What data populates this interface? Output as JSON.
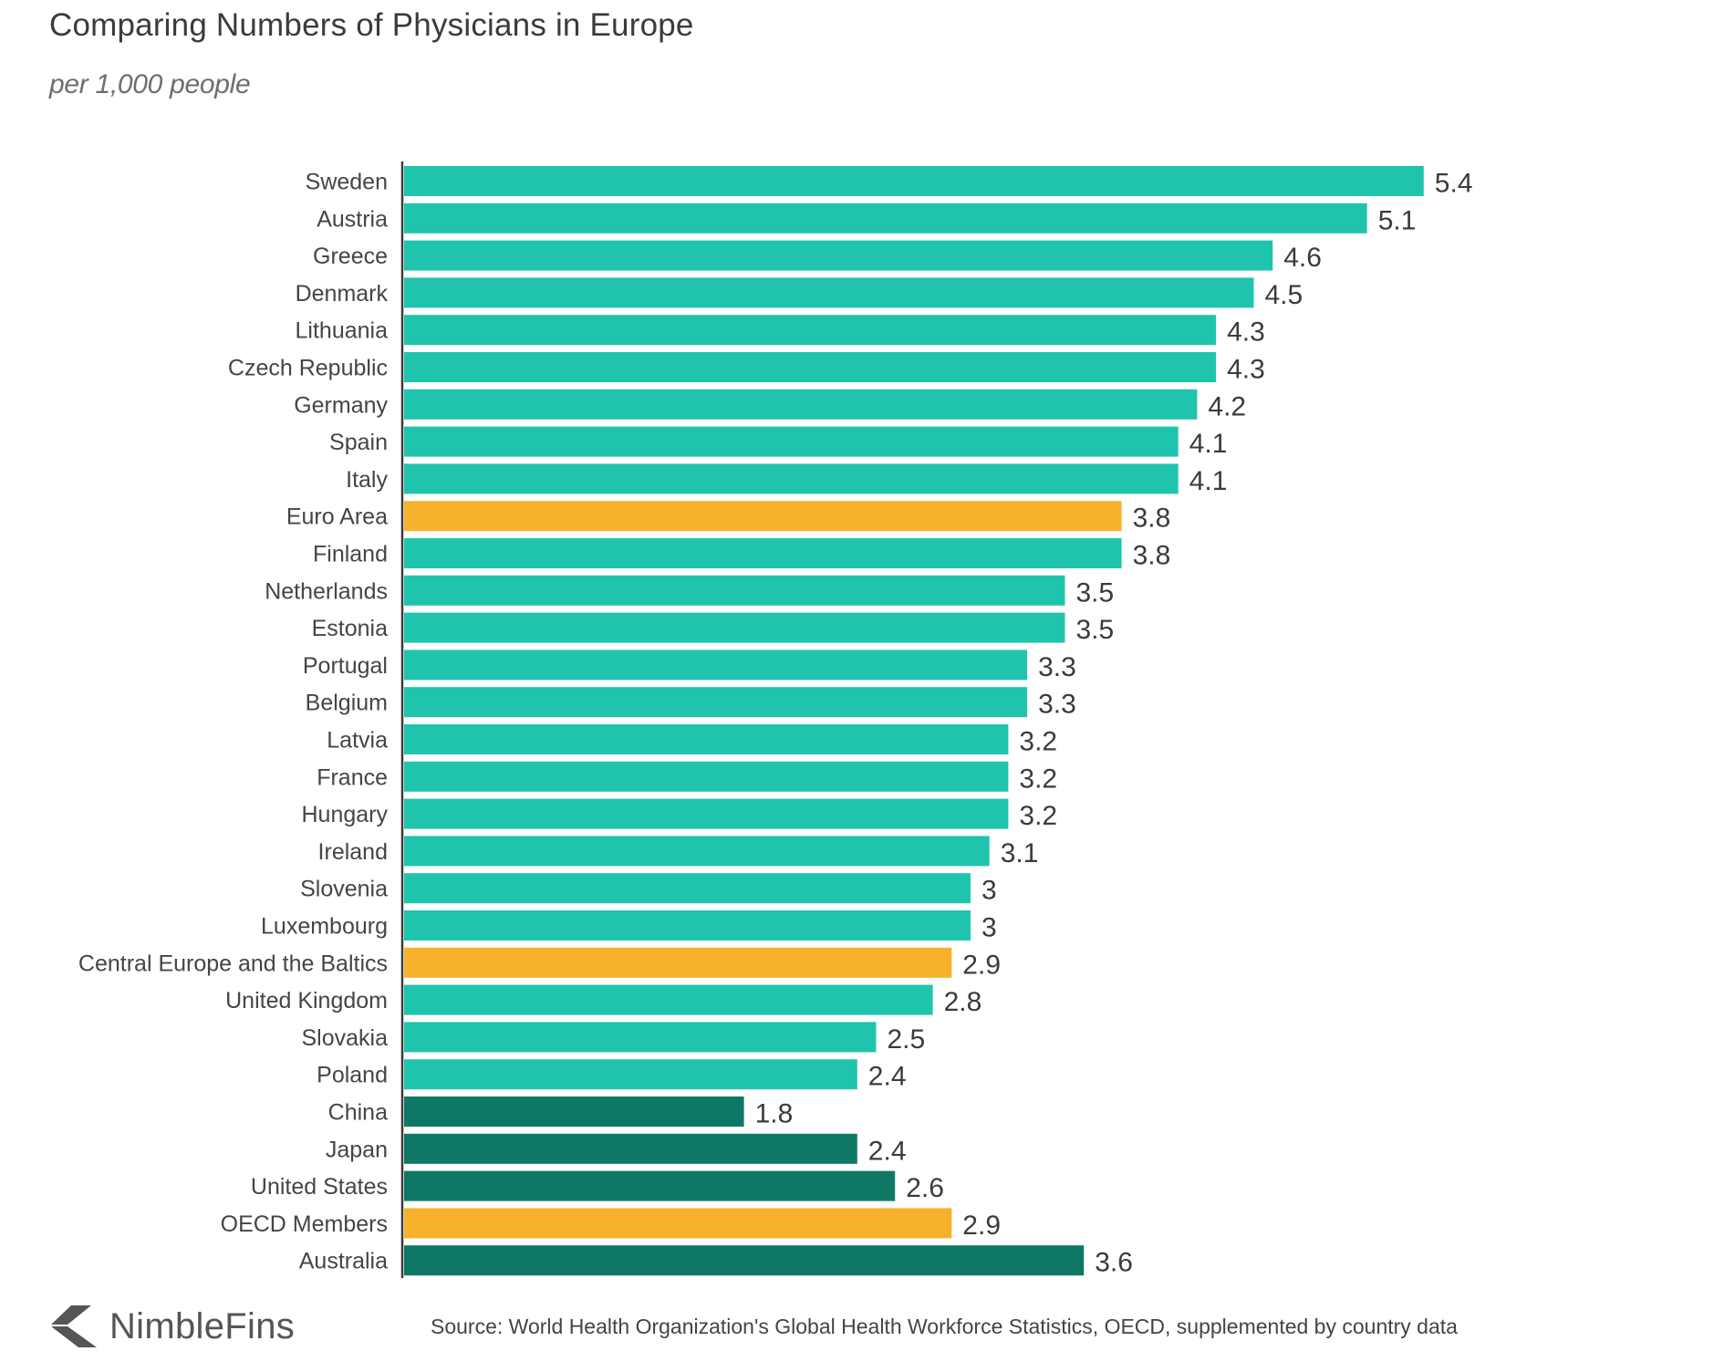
{
  "chart_data": {
    "type": "bar",
    "orientation": "horizontal",
    "title": "Comparing Numbers of Physicians in Europe",
    "subtitle": "per 1,000 people",
    "xlabel": "",
    "ylabel": "",
    "xlim": [
      0,
      5.4
    ],
    "grid": false,
    "legend": "none",
    "categories": [
      "Sweden",
      "Austria",
      "Greece",
      "Denmark",
      "Lithuania",
      "Czech Republic",
      "Germany",
      "Spain",
      "Italy",
      "Euro Area",
      "Finland",
      "Netherlands",
      "Estonia",
      "Portugal",
      "Belgium",
      "Latvia",
      "France",
      "Hungary",
      "Ireland",
      "Slovenia",
      "Luxembourg",
      "Central Europe and the Baltics",
      "United Kingdom",
      "Slovakia",
      "Poland",
      "China",
      "Japan",
      "United States",
      "OECD Members",
      "Australia"
    ],
    "values": [
      5.4,
      5.1,
      4.6,
      4.5,
      4.3,
      4.3,
      4.2,
      4.1,
      4.1,
      3.8,
      3.8,
      3.5,
      3.5,
      3.3,
      3.3,
      3.2,
      3.2,
      3.2,
      3.1,
      3,
      3,
      2.9,
      2.8,
      2.5,
      2.4,
      1.8,
      2.4,
      2.6,
      2.9,
      3.6
    ],
    "value_labels": [
      "5.4",
      "5.1",
      "4.6",
      "4.5",
      "4.3",
      "4.3",
      "4.2",
      "4.1",
      "4.1",
      "3.8",
      "3.8",
      "3.5",
      "3.5",
      "3.3",
      "3.3",
      "3.2",
      "3.2",
      "3.2",
      "3.1",
      "3",
      "3",
      "2.9",
      "2.8",
      "2.5",
      "2.4",
      "1.8",
      "2.4",
      "2.6",
      "2.9",
      "3.6"
    ],
    "groups": [
      "europe",
      "europe",
      "europe",
      "europe",
      "europe",
      "europe",
      "europe",
      "europe",
      "europe",
      "aggregate",
      "europe",
      "europe",
      "europe",
      "europe",
      "europe",
      "europe",
      "europe",
      "europe",
      "europe",
      "europe",
      "europe",
      "aggregate",
      "europe",
      "europe",
      "europe",
      "non_europe",
      "non_europe",
      "non_europe",
      "aggregate",
      "non_europe"
    ],
    "colors": {
      "europe": "#20c4ad",
      "aggregate": "#f7b12c",
      "non_europe": "#0f7864",
      "axis": "#3a3a3a"
    }
  },
  "header": {
    "title": "Comparing Numbers of Physicians in Europe",
    "subtitle": "per 1,000 people"
  },
  "footer": {
    "logo_text": "NimbleFins",
    "logo_icon": "chevron-left-logo-icon",
    "source": "Source: World Health Organization's Global Health Workforce Statistics, OECD, supplemented by country data"
  }
}
